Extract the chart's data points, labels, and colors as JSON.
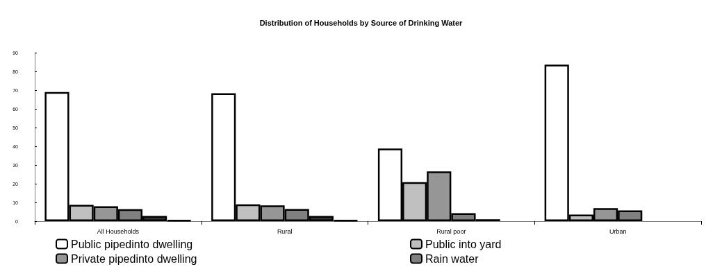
{
  "chart_data": {
    "type": "bar",
    "title": "Distribution of Households by Source of Drinking Water",
    "categories": [
      "All Households",
      "Rural",
      "Rural poor",
      "Urban"
    ],
    "series": [
      {
        "name": "Public pipedinto dwelling",
        "color": "#ffffff",
        "values": [
          69,
          68.3,
          38.8,
          83.6
        ]
      },
      {
        "name": "Public into yard",
        "color": "#c0c0c0",
        "values": [
          8.7,
          9,
          20.8,
          3.5
        ]
      },
      {
        "name": "Private pipedinto dwelling",
        "color": "#969696",
        "values": [
          8,
          8.4,
          26.6,
          6.9
        ]
      },
      {
        "name": "Rain water",
        "color": "#808080",
        "values": [
          6.4,
          6.5,
          4.3,
          5.7
        ]
      },
      {
        "color": "#333333",
        "values": [
          2.8,
          2.8,
          1,
          null
        ]
      },
      {
        "color": "#000000",
        "values": [
          0.5,
          0.5,
          null,
          null
        ]
      }
    ],
    "ylim": [
      0,
      90
    ],
    "yticks": [
      0,
      10,
      20,
      30,
      40,
      50,
      60,
      70,
      80,
      90
    ],
    "grid": false,
    "legend": "bottom"
  }
}
